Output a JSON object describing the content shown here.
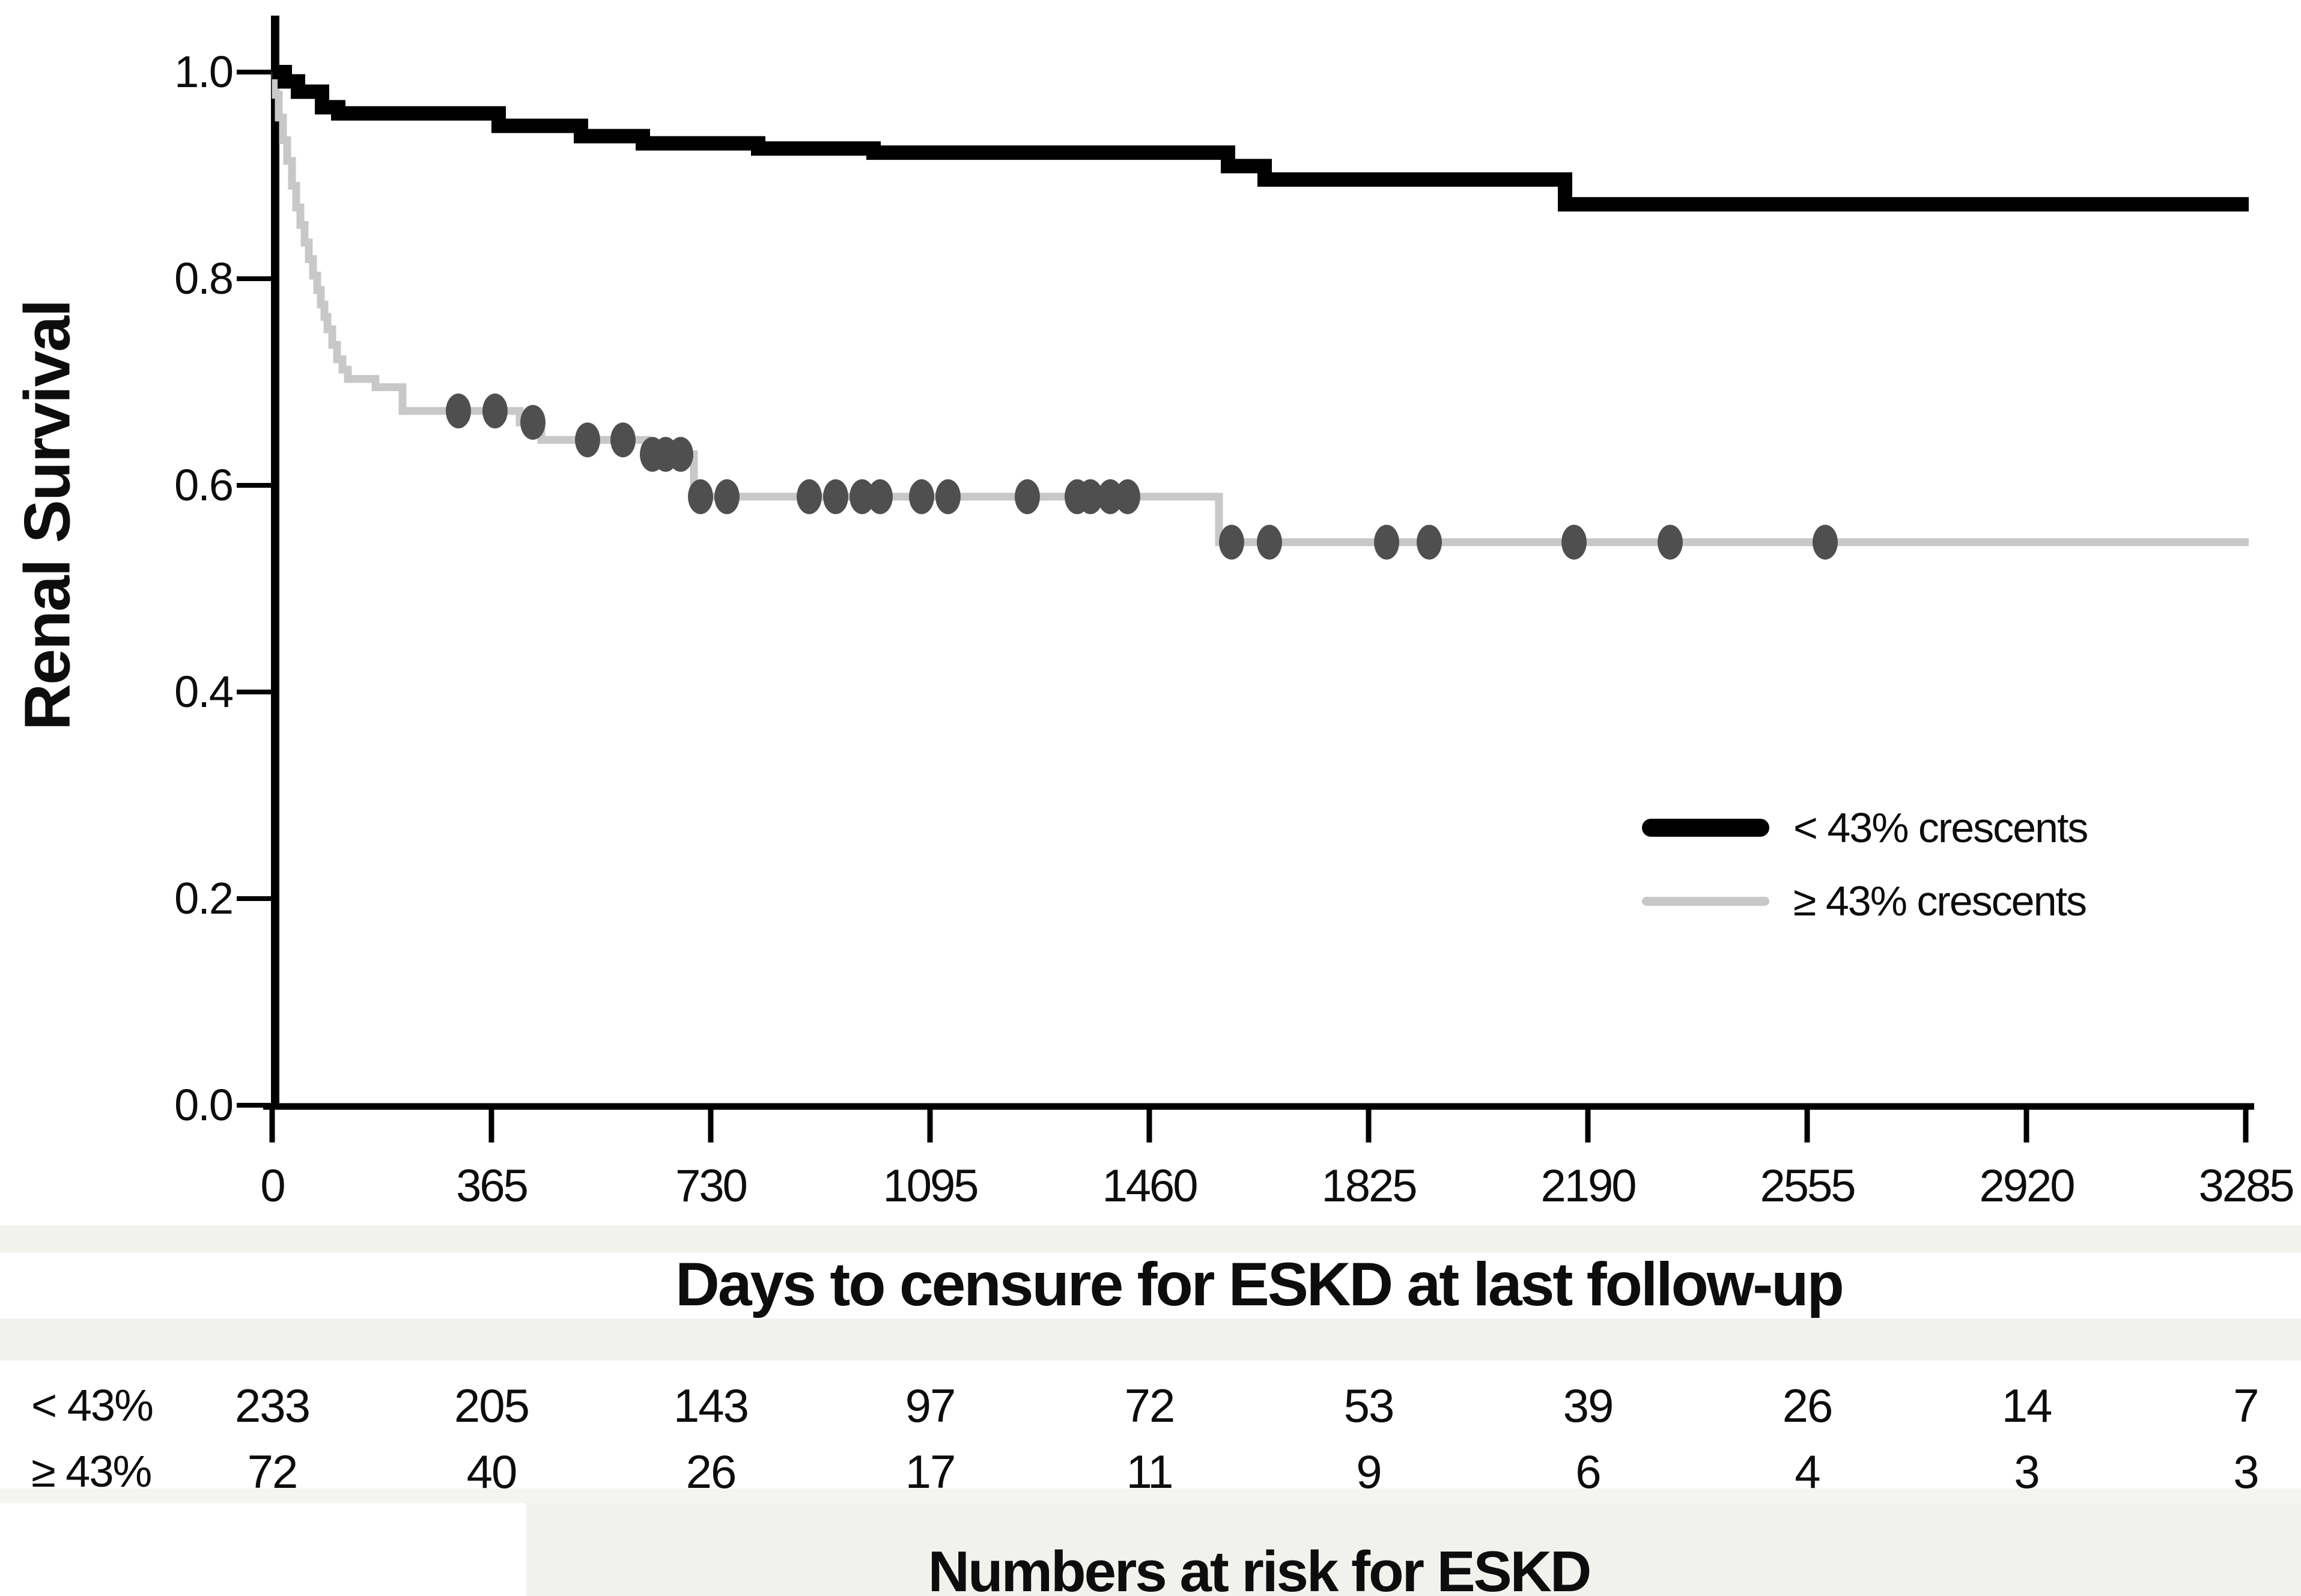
{
  "colors": {
    "black_curve": "#000000",
    "gray_curve": "#c8c8c8",
    "censor_mark": "#4f4f4f",
    "band": "#f1f1ee",
    "text": "#0d0d0d",
    "background": "#ffffff"
  },
  "legend": {
    "items": [
      {
        "label": "< 43% crescents",
        "swatch_color": "#000000",
        "swatch_thickness": 30
      },
      {
        "label": "≥ 43% crescents",
        "swatch_color": "#c8c8c8",
        "swatch_thickness": 15
      }
    ]
  },
  "chart_data": {
    "type": "line",
    "subtype": "kaplan_meier_step",
    "title": "",
    "xlabel": "Days to censure for ESKD at last follow-up",
    "ylabel": "Renal Survival",
    "xlim": [
      0,
      3285
    ],
    "ylim": [
      0.0,
      1.0
    ],
    "grid": false,
    "legend_position": "middle-right",
    "x_ticks": [
      0,
      365,
      730,
      1095,
      1460,
      1825,
      2190,
      2555,
      2920,
      3285
    ],
    "y_ticks": [
      1.0,
      0.8,
      0.6,
      0.4,
      0.2,
      0.0
    ],
    "y_tick_labels": [
      "1.0",
      "0.8",
      "0.6",
      "0.4",
      "0.2",
      "0.0"
    ],
    "series": [
      {
        "name": "< 43% crescents",
        "color": "#000000",
        "line_width": 24,
        "end_x": 3290,
        "steps": [
          [
            0,
            1.0
          ],
          [
            21,
            0.991
          ],
          [
            43,
            0.981
          ],
          [
            83,
            0.966
          ],
          [
            110,
            0.96
          ],
          [
            377,
            0.948
          ],
          [
            514,
            0.938
          ],
          [
            617,
            0.931
          ],
          [
            809,
            0.926
          ],
          [
            1001,
            0.922
          ],
          [
            1591,
            0.909
          ],
          [
            1652,
            0.896
          ],
          [
            2152,
            0.872
          ]
        ],
        "censor_marks": []
      },
      {
        "name": "≥ 43% crescents",
        "color": "#c8c8c8",
        "line_width": 13,
        "end_x": 3290,
        "steps": [
          [
            0,
            1.0
          ],
          [
            6,
            0.978
          ],
          [
            11,
            0.956
          ],
          [
            18,
            0.934
          ],
          [
            25,
            0.914
          ],
          [
            33,
            0.89
          ],
          [
            40,
            0.869
          ],
          [
            47,
            0.852
          ],
          [
            54,
            0.835
          ],
          [
            61,
            0.819
          ],
          [
            68,
            0.803
          ],
          [
            75,
            0.789
          ],
          [
            81,
            0.775
          ],
          [
            87,
            0.763
          ],
          [
            92,
            0.751
          ],
          [
            100,
            0.736
          ],
          [
            108,
            0.722
          ],
          [
            117,
            0.712
          ],
          [
            126,
            0.703
          ],
          [
            172,
            0.695
          ],
          [
            217,
            0.672
          ],
          [
            412,
            0.661
          ],
          [
            448,
            0.644
          ],
          [
            624,
            0.63
          ],
          [
            702,
            0.589
          ],
          [
            1576,
            0.545
          ]
        ],
        "censor_marks": [
          [
            310,
            0.672
          ],
          [
            371,
            0.672
          ],
          [
            434,
            0.661
          ],
          [
            525,
            0.644
          ],
          [
            584,
            0.644
          ],
          [
            633,
            0.63
          ],
          [
            655,
            0.63
          ],
          [
            680,
            0.63
          ],
          [
            713,
            0.589
          ],
          [
            757,
            0.589
          ],
          [
            894,
            0.589
          ],
          [
            938,
            0.589
          ],
          [
            982,
            0.589
          ],
          [
            1012,
            0.589
          ],
          [
            1081,
            0.589
          ],
          [
            1125,
            0.589
          ],
          [
            1257,
            0.589
          ],
          [
            1340,
            0.589
          ],
          [
            1362,
            0.589
          ],
          [
            1395,
            0.589
          ],
          [
            1424,
            0.589
          ],
          [
            1597,
            0.545
          ],
          [
            1660,
            0.545
          ],
          [
            1855,
            0.545
          ],
          [
            1926,
            0.545
          ],
          [
            2167,
            0.545
          ],
          [
            2327,
            0.545
          ],
          [
            2585,
            0.545
          ]
        ]
      }
    ],
    "risk_table": {
      "title": "Numbers at risk for ESKD",
      "columns": [
        0,
        365,
        730,
        1095,
        1460,
        1825,
        2190,
        2555,
        2920,
        3285
      ],
      "rows": [
        {
          "label": "< 43%",
          "values": [
            233,
            205,
            143,
            97,
            72,
            53,
            39,
            26,
            14,
            7
          ]
        },
        {
          "label": "≥ 43%",
          "values": [
            72,
            40,
            26,
            17,
            11,
            9,
            6,
            4,
            3,
            3
          ]
        }
      ]
    }
  }
}
